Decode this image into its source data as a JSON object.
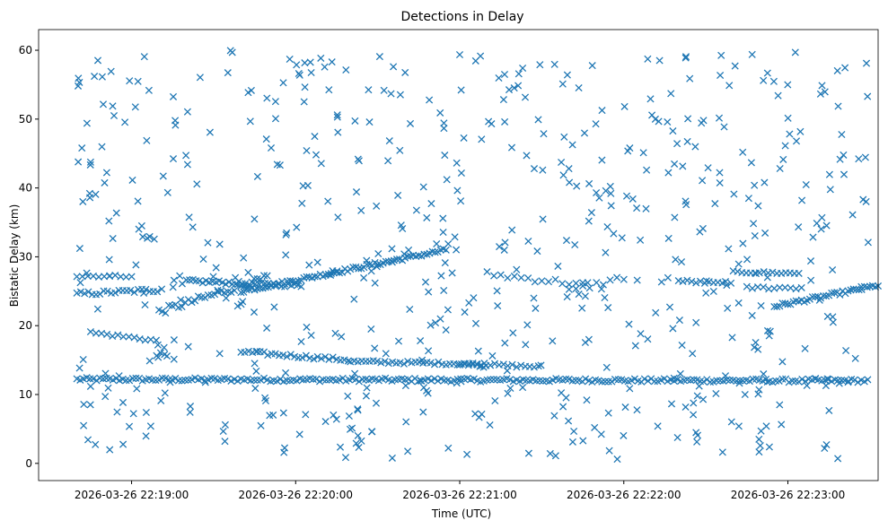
{
  "chart_data": {
    "type": "scatter",
    "title": "Detections in Delay",
    "xlabel": "Time (UTC)",
    "ylabel": "Bistatic Delay (km)",
    "marker": "x",
    "color": "#1f77b4",
    "x_range_seconds": [
      "2026-03-26 22:18:26",
      "2026-03-26 22:23:33"
    ],
    "ylim": [
      -2.5,
      63
    ],
    "x_ticks": [
      "2026-03-26 22:19:00",
      "2026-03-26 22:20:00",
      "2026-03-26 22:21:00",
      "2026-03-26 22:22:00",
      "2026-03-26 22:23:00"
    ],
    "y_ticks": [
      0,
      10,
      20,
      30,
      40,
      50,
      60
    ],
    "grid": false,
    "legend": "none",
    "tracks": [
      {
        "description_of_points": "constant track",
        "x_start": "2026-03-26 22:18:40",
        "x_end": "2026-03-26 22:23:30",
        "y_start": 12.2,
        "y_end": 12.0,
        "segments": [
          [
            "2026-03-26 22:18:40",
            "2026-03-26 22:19:55"
          ],
          [
            "2026-03-26 22:20:35",
            "2026-03-26 22:21:15"
          ]
        ]
      }
    ],
    "points": {
      "time_range": [
        "2026-03-26 22:18:40",
        "2026-03-26 22:23:30"
      ],
      "y_min": 0.6,
      "y_max": 60
    }
  }
}
